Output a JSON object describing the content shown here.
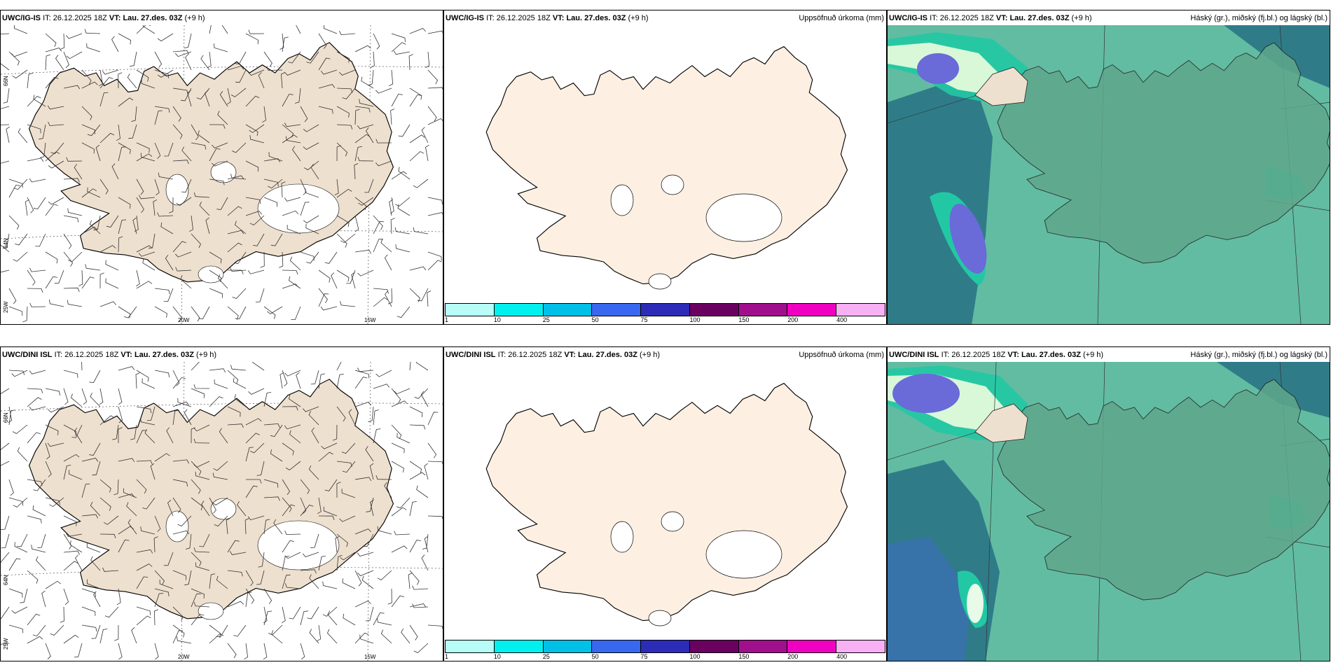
{
  "rows": [
    {
      "model": "UWC/IG-IS",
      "it_label": "IT:",
      "it_value": "26.12.2025 18Z",
      "vt_label": "VT:",
      "vt_value": "Lau. 27.des. 03Z",
      "lead": "(+9 h)"
    },
    {
      "model": "UWC/DINI ISL",
      "it_label": "IT:",
      "it_value": "26.12.2025 18Z",
      "vt_label": "VT:",
      "vt_value": "Lau. 27.des. 03Z",
      "lead": "(+9 h)"
    }
  ],
  "precip_label": "Uppsöfnuð úrkoma (mm)",
  "cloud_label": "Háský (gr.), miðský (fj.bl.) og lágský (bl.)",
  "axis": {
    "lon_20w": "20W",
    "lon_15w": "15W",
    "lat_66n": "66N",
    "lat_64n": "64N",
    "lon_25w": "25W"
  },
  "colorbar": {
    "colors": [
      "#b7fcf7",
      "#00f0f0",
      "#00c0e8",
      "#3868f0",
      "#2c2cb8",
      "#6a0060",
      "#a0108c",
      "#f000c0",
      "#f7b0f4"
    ],
    "ticks": [
      "1",
      "10",
      "25",
      "50",
      "75",
      "100",
      "150",
      "200",
      "400"
    ]
  },
  "colors": {
    "land": "#eee0ce",
    "land_light": "#fdf0e2",
    "sea_cloud": "#62bca2",
    "sea_deep": "#2f7c88",
    "cloud_high": "#22c8a4",
    "cloud_mid": "#6a6ad8"
  }
}
